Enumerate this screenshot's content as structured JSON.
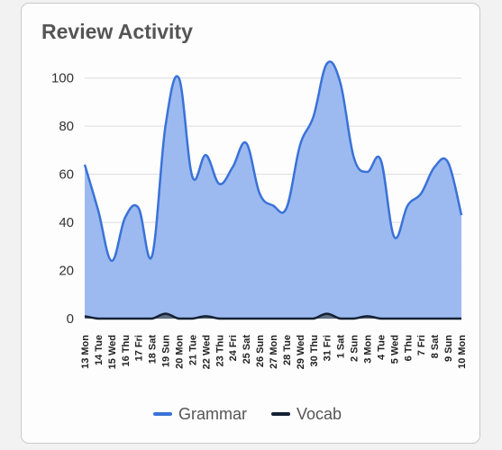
{
  "card": {
    "title": "Review Activity"
  },
  "chart_data": {
    "type": "area",
    "title": "Review Activity",
    "xlabel": "",
    "ylabel": "",
    "ylim": [
      0,
      110
    ],
    "yticks": [
      0,
      20,
      40,
      60,
      80,
      100
    ],
    "grid": true,
    "legend_position": "bottom",
    "categories": [
      "13 Mon",
      "14 Tue",
      "15 Wed",
      "16 Thu",
      "17 Fri",
      "18 Sat",
      "19 Sun",
      "20 Mon",
      "21 Tue",
      "22 Wed",
      "23 Thu",
      "24 Fri",
      "25 Sat",
      "26 Sun",
      "27 Mon",
      "28 Tue",
      "29 Wed",
      "30 Thu",
      "31 Fri",
      "1 Sat",
      "2 Sun",
      "3 Mon",
      "4 Tue",
      "5 Wed",
      "6 Thu",
      "7 Fri",
      "8 Sat",
      "9 Sun",
      "10 Mon"
    ],
    "series": [
      {
        "name": "Grammar",
        "color": "#3a72d8",
        "fill": "#97b6ef",
        "values": [
          64,
          45,
          24,
          42,
          46,
          26,
          80,
          100,
          59,
          68,
          56,
          63,
          73,
          52,
          47,
          46,
          72,
          84,
          106,
          98,
          67,
          61,
          66,
          34,
          47,
          52,
          63,
          65,
          43
        ]
      },
      {
        "name": "Vocab",
        "color": "#132133",
        "fill": "#5b6a7a",
        "values": [
          1,
          0,
          0,
          0,
          0,
          0,
          2,
          0,
          0,
          1,
          0,
          0,
          0,
          0,
          0,
          0,
          0,
          0,
          2,
          0,
          0,
          1,
          0,
          0,
          0,
          0,
          0,
          0,
          0
        ]
      }
    ]
  }
}
